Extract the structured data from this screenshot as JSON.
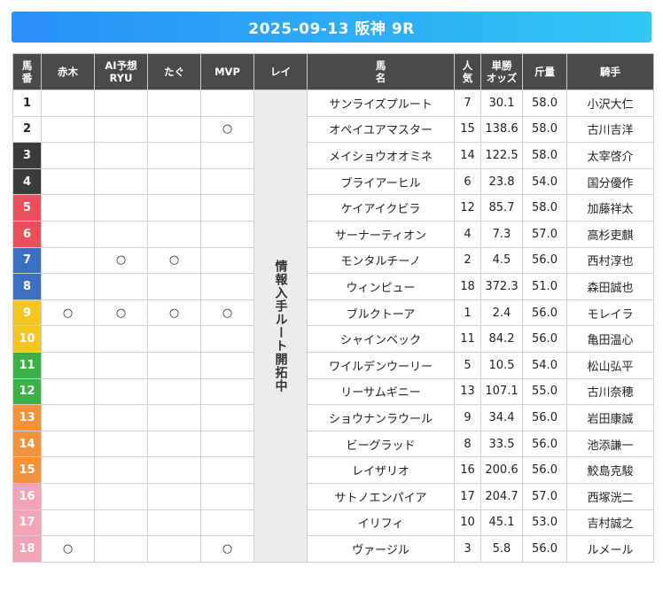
{
  "header": {
    "title": "2025-09-13 阪神 9R"
  },
  "columns": {
    "umaban": "馬\n番",
    "akagi": "赤木",
    "ai": "AI予想\nRYU",
    "tagu": "たぐ",
    "mvp": "MVP",
    "rei": "レイ",
    "horse": "馬\n名",
    "ninki": "人\n気",
    "odds": "単勝\nオッズ",
    "kinryo": "斤量",
    "jockey": "騎手"
  },
  "rei_note": "情報入手ルート開拓中",
  "horses": [
    {
      "num": "1",
      "color": "white",
      "akagi": "",
      "ai": "",
      "tagu": "",
      "mvp": "",
      "name": "サンライズプルート",
      "ninki": "7",
      "odds": "30.1",
      "kinryo": "58.0",
      "jockey": "小沢大仁"
    },
    {
      "num": "2",
      "color": "white",
      "akagi": "",
      "ai": "",
      "tagu": "",
      "mvp": "○",
      "name": "オペイユアマスター",
      "ninki": "15",
      "odds": "138.6",
      "kinryo": "58.0",
      "jockey": "古川吉洋"
    },
    {
      "num": "3",
      "color": "black",
      "akagi": "",
      "ai": "",
      "tagu": "",
      "mvp": "",
      "name": "メイショウオオミネ",
      "ninki": "14",
      "odds": "122.5",
      "kinryo": "58.0",
      "jockey": "太宰啓介"
    },
    {
      "num": "4",
      "color": "black",
      "akagi": "",
      "ai": "",
      "tagu": "",
      "mvp": "",
      "name": "ブライアーヒル",
      "ninki": "6",
      "odds": "23.8",
      "kinryo": "54.0",
      "jockey": "国分優作"
    },
    {
      "num": "5",
      "color": "red",
      "akagi": "",
      "ai": "",
      "tagu": "",
      "mvp": "",
      "name": "ケイアイクビラ",
      "ninki": "12",
      "odds": "85.7",
      "kinryo": "58.0",
      "jockey": "加藤祥太"
    },
    {
      "num": "6",
      "color": "red",
      "akagi": "",
      "ai": "",
      "tagu": "",
      "mvp": "",
      "name": "サーナーティオン",
      "ninki": "4",
      "odds": "7.3",
      "kinryo": "57.0",
      "jockey": "高杉吏麒"
    },
    {
      "num": "7",
      "color": "blue",
      "akagi": "",
      "ai": "○",
      "tagu": "○",
      "mvp": "",
      "name": "モンタルチーノ",
      "ninki": "2",
      "odds": "4.5",
      "kinryo": "56.0",
      "jockey": "西村淳也"
    },
    {
      "num": "8",
      "color": "blue",
      "akagi": "",
      "ai": "",
      "tagu": "",
      "mvp": "",
      "name": "ウィンピュー",
      "ninki": "18",
      "odds": "372.3",
      "kinryo": "51.0",
      "jockey": "森田誠也"
    },
    {
      "num": "9",
      "color": "yellow",
      "akagi": "○",
      "ai": "○",
      "tagu": "○",
      "mvp": "○",
      "name": "ブルクトーア",
      "ninki": "1",
      "odds": "2.4",
      "kinryo": "56.0",
      "jockey": "モレイラ"
    },
    {
      "num": "10",
      "color": "yellow",
      "akagi": "",
      "ai": "",
      "tagu": "",
      "mvp": "",
      "name": "シャインベック",
      "ninki": "11",
      "odds": "84.2",
      "kinryo": "56.0",
      "jockey": "亀田温心"
    },
    {
      "num": "11",
      "color": "green",
      "akagi": "",
      "ai": "",
      "tagu": "",
      "mvp": "",
      "name": "ワイルデンウーリー",
      "ninki": "5",
      "odds": "10.5",
      "kinryo": "54.0",
      "jockey": "松山弘平"
    },
    {
      "num": "12",
      "color": "green",
      "akagi": "",
      "ai": "",
      "tagu": "",
      "mvp": "",
      "name": "リーサムギニー",
      "ninki": "13",
      "odds": "107.1",
      "kinryo": "55.0",
      "jockey": "古川奈穂"
    },
    {
      "num": "13",
      "color": "orange",
      "akagi": "",
      "ai": "",
      "tagu": "",
      "mvp": "",
      "name": "ショウナンラウール",
      "ninki": "9",
      "odds": "34.4",
      "kinryo": "56.0",
      "jockey": "岩田康誠"
    },
    {
      "num": "14",
      "color": "orange",
      "akagi": "",
      "ai": "",
      "tagu": "",
      "mvp": "",
      "name": "ビーグラッド",
      "ninki": "8",
      "odds": "33.5",
      "kinryo": "56.0",
      "jockey": "池添謙一"
    },
    {
      "num": "15",
      "color": "orange",
      "akagi": "",
      "ai": "",
      "tagu": "",
      "mvp": "",
      "name": "レイザリオ",
      "ninki": "16",
      "odds": "200.6",
      "kinryo": "56.0",
      "jockey": "鮫島克駿"
    },
    {
      "num": "16",
      "color": "pink",
      "akagi": "",
      "ai": "",
      "tagu": "",
      "mvp": "",
      "name": "サトノエンパイア",
      "ninki": "17",
      "odds": "204.7",
      "kinryo": "57.0",
      "jockey": "西塚洸二"
    },
    {
      "num": "17",
      "color": "pink",
      "akagi": "",
      "ai": "",
      "tagu": "",
      "mvp": "",
      "name": "イリフィ",
      "ninki": "10",
      "odds": "45.1",
      "kinryo": "53.0",
      "jockey": "吉村誠之"
    },
    {
      "num": "18",
      "color": "pink",
      "akagi": "○",
      "ai": "",
      "tagu": "",
      "mvp": "○",
      "name": "ヴァージル",
      "ninki": "3",
      "odds": "5.8",
      "kinryo": "56.0",
      "jockey": "ルメール"
    }
  ]
}
